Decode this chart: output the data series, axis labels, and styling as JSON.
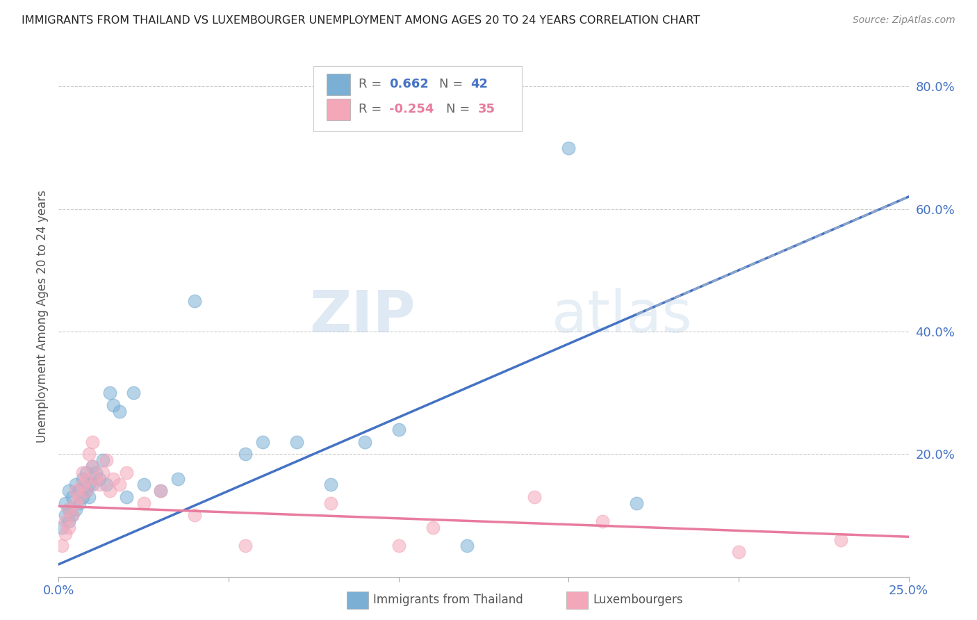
{
  "title": "IMMIGRANTS FROM THAILAND VS LUXEMBOURGER UNEMPLOYMENT AMONG AGES 20 TO 24 YEARS CORRELATION CHART",
  "source": "Source: ZipAtlas.com",
  "ylabel": "Unemployment Among Ages 20 to 24 years",
  "xlim": [
    0.0,
    0.25
  ],
  "ylim": [
    0.0,
    0.85
  ],
  "xticks": [
    0.0,
    0.05,
    0.1,
    0.15,
    0.2,
    0.25
  ],
  "xtick_labels": [
    "0.0%",
    "",
    "",
    "",
    "",
    "25.0%"
  ],
  "ytick_vals_right": [
    0.2,
    0.4,
    0.6,
    0.8
  ],
  "blue_color": "#7bafd4",
  "pink_color": "#f4a7b9",
  "blue_line_color": "#4472c4",
  "pink_line_color": "#e87c9e",
  "watermark_zip": "ZIP",
  "watermark_atlas": "atlas",
  "blue_r": 0.662,
  "blue_n": 42,
  "pink_r": -0.254,
  "pink_n": 35,
  "blue_scatter_x": [
    0.001,
    0.002,
    0.002,
    0.003,
    0.003,
    0.003,
    0.004,
    0.004,
    0.005,
    0.005,
    0.006,
    0.006,
    0.007,
    0.007,
    0.008,
    0.008,
    0.009,
    0.009,
    0.01,
    0.01,
    0.011,
    0.012,
    0.013,
    0.014,
    0.015,
    0.016,
    0.018,
    0.02,
    0.022,
    0.025,
    0.03,
    0.035,
    0.04,
    0.055,
    0.06,
    0.07,
    0.08,
    0.09,
    0.1,
    0.12,
    0.15,
    0.17
  ],
  "blue_scatter_y": [
    0.08,
    0.1,
    0.12,
    0.09,
    0.11,
    0.14,
    0.1,
    0.13,
    0.11,
    0.15,
    0.12,
    0.14,
    0.13,
    0.16,
    0.14,
    0.17,
    0.13,
    0.15,
    0.15,
    0.18,
    0.17,
    0.16,
    0.19,
    0.15,
    0.3,
    0.28,
    0.27,
    0.13,
    0.3,
    0.15,
    0.14,
    0.16,
    0.45,
    0.2,
    0.22,
    0.22,
    0.15,
    0.22,
    0.24,
    0.05,
    0.7,
    0.12
  ],
  "pink_scatter_x": [
    0.001,
    0.002,
    0.002,
    0.003,
    0.003,
    0.004,
    0.005,
    0.005,
    0.006,
    0.007,
    0.007,
    0.008,
    0.008,
    0.009,
    0.01,
    0.01,
    0.011,
    0.012,
    0.013,
    0.014,
    0.015,
    0.016,
    0.018,
    0.02,
    0.025,
    0.03,
    0.04,
    0.055,
    0.08,
    0.1,
    0.11,
    0.14,
    0.16,
    0.2,
    0.23
  ],
  "pink_scatter_y": [
    0.05,
    0.07,
    0.09,
    0.08,
    0.11,
    0.1,
    0.12,
    0.14,
    0.13,
    0.15,
    0.17,
    0.14,
    0.16,
    0.2,
    0.22,
    0.18,
    0.16,
    0.15,
    0.17,
    0.19,
    0.14,
    0.16,
    0.15,
    0.17,
    0.12,
    0.14,
    0.1,
    0.05,
    0.12,
    0.05,
    0.08,
    0.13,
    0.09,
    0.04,
    0.06
  ]
}
